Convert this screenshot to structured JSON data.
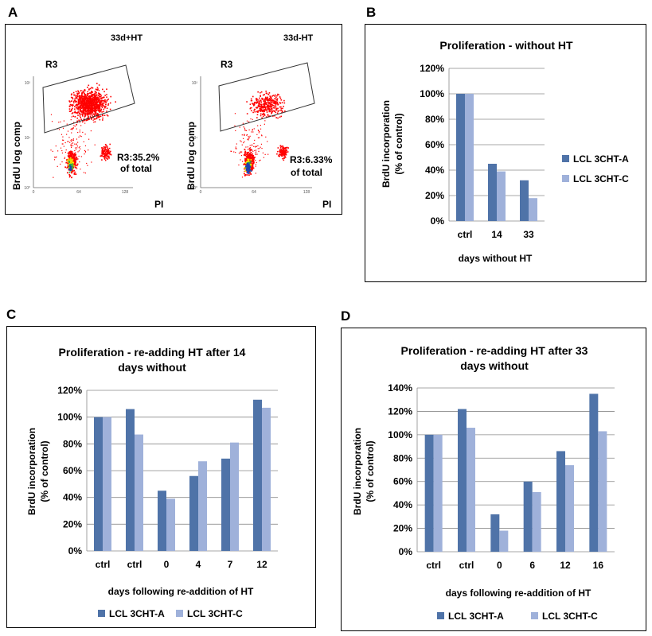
{
  "colors": {
    "seriesA": "#4f73a8",
    "seriesC": "#9fb1da",
    "grid": "#8a8a8a",
    "flow_dense": "#ff0000",
    "flow_core_yellow": "#f2e600",
    "flow_core_green": "#2aa84a",
    "flow_core_blue": "#1f3fb0"
  },
  "panels": {
    "A": {
      "letter": "A",
      "plots": [
        {
          "title": "33d+HT",
          "gate": "R3",
          "stat_line1": "R3:35.2%",
          "stat_line2": "of total",
          "ylabel": "BrdU log comp",
          "xlabel": "PI",
          "x_ticks": [
            "0",
            "64",
            "128"
          ],
          "y_ticks": [
            "10⁰",
            "10¹",
            "10²"
          ]
        },
        {
          "title": "33d-HT",
          "gate": "R3",
          "stat_line1": "R3:6.33%",
          "stat_line2": "of total",
          "ylabel": "BrdU log comp",
          "xlabel": "PI",
          "x_ticks": [
            "0",
            "64",
            "128"
          ],
          "y_ticks": [
            "10⁰",
            "10¹",
            "10²"
          ]
        }
      ]
    },
    "B": {
      "letter": "B"
    },
    "C": {
      "letter": "C"
    },
    "D": {
      "letter": "D"
    }
  },
  "chart_data": [
    {
      "id": "B",
      "type": "bar",
      "title": "Proliferation - without HT",
      "xlabel": "days without HT",
      "ylabel": "BrdU incorporation (% of control)",
      "ylabel_lines": [
        "BrdU incorporation",
        "(% of control)"
      ],
      "categories": [
        "ctrl",
        "14",
        "33"
      ],
      "series": [
        {
          "name": "LCL 3CHT-A",
          "values": [
            100,
            45,
            32
          ]
        },
        {
          "name": "LCL 3CHT-C",
          "values": [
            100,
            39,
            18
          ]
        }
      ],
      "ylim": [
        0,
        120
      ],
      "yticks": [
        0,
        20,
        40,
        60,
        80,
        100,
        120
      ],
      "ytick_labels": [
        "0%",
        "20%",
        "40%",
        "60%",
        "80%",
        "100%",
        "120%"
      ],
      "grid": true,
      "legend": "right"
    },
    {
      "id": "C",
      "type": "bar",
      "title": "Proliferation - re-adding HT after 14 days  without",
      "title_lines": [
        "Proliferation - re-adding HT after 14",
        "days  without"
      ],
      "xlabel": "days following re-addition of HT",
      "ylabel": "BrdU incorporation (% of control)",
      "ylabel_lines": [
        "BrdU incorporation",
        "(% of control)"
      ],
      "categories": [
        "ctrl",
        "ctrl",
        "0",
        "4",
        "7",
        "12"
      ],
      "series": [
        {
          "name": "LCL 3CHT-A",
          "values": [
            100,
            106,
            45,
            56,
            69,
            113
          ]
        },
        {
          "name": "LCL 3CHT-C",
          "values": [
            100,
            87,
            39,
            67,
            81,
            107
          ]
        }
      ],
      "ylim": [
        0,
        120
      ],
      "yticks": [
        0,
        20,
        40,
        60,
        80,
        100,
        120
      ],
      "ytick_labels": [
        "0%",
        "20%",
        "40%",
        "60%",
        "80%",
        "100%",
        "120%"
      ],
      "grid": true,
      "legend": "bottom"
    },
    {
      "id": "D",
      "type": "bar",
      "title": "Proliferation - re-adding HT after 33 days without",
      "title_lines": [
        "Proliferation - re-adding HT after 33",
        "days without"
      ],
      "xlabel": "days following re-addition of HT",
      "ylabel": "BrdU incorporation (% of control)",
      "ylabel_lines": [
        "BrdU incorporation",
        "(% of control)"
      ],
      "categories": [
        "ctrl",
        "ctrl",
        "0",
        "6",
        "12",
        "16"
      ],
      "series": [
        {
          "name": "LCL 3CHT-A",
          "values": [
            100,
            122,
            32,
            60,
            86,
            135
          ]
        },
        {
          "name": "LCL 3CHT-C",
          "values": [
            100,
            106,
            18,
            51,
            74,
            103
          ]
        }
      ],
      "ylim": [
        0,
        140
      ],
      "yticks": [
        0,
        20,
        40,
        60,
        80,
        100,
        120,
        140
      ],
      "ytick_labels": [
        "0%",
        "20%",
        "40%",
        "60%",
        "80%",
        "100%",
        "120%",
        "140%"
      ],
      "grid": true,
      "legend": "bottom"
    }
  ]
}
